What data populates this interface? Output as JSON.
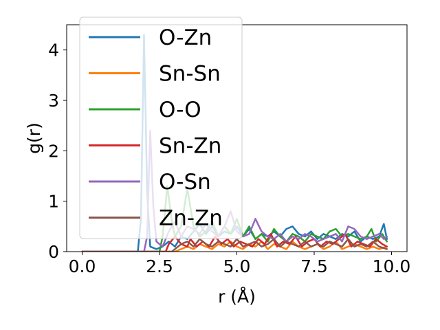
{
  "chart_data": {
    "type": "line",
    "title": "",
    "xlabel": "r (Å)",
    "ylabel": "g(r)",
    "xlim": [
      -0.5,
      10.5
    ],
    "ylim": [
      0,
      4.5
    ],
    "xticks": [
      0.0,
      2.5,
      5.0,
      7.5,
      10.0
    ],
    "xtick_labels": [
      "0.0",
      "2.5",
      "5.0",
      "7.5",
      "10.0"
    ],
    "yticks": [
      0,
      1,
      2,
      3,
      4
    ],
    "ytick_labels": [
      "0",
      "1",
      "2",
      "3",
      "4"
    ],
    "grid": false,
    "legend_position": "upper-left",
    "series": [
      {
        "name": "O-Zn",
        "color": "#1f77b4",
        "x": [
          0,
          1.8,
          1.9,
          2.0,
          2.1,
          2.2,
          2.4,
          2.6,
          2.8,
          3.0,
          3.2,
          3.4,
          3.6,
          3.8,
          4.0,
          4.2,
          4.4,
          4.6,
          4.8,
          5.0,
          5.2,
          5.4,
          5.6,
          5.8,
          6.0,
          6.2,
          6.4,
          6.6,
          6.8,
          7.0,
          7.2,
          7.4,
          7.6,
          7.8,
          8.0,
          8.2,
          8.4,
          8.6,
          8.8,
          9.0,
          9.2,
          9.4,
          9.6,
          9.75,
          9.85
        ],
        "values": [
          0,
          0,
          0.65,
          4.3,
          1.2,
          0.1,
          0.05,
          0.1,
          0.2,
          0.1,
          0.3,
          0.25,
          0.4,
          0.55,
          0.35,
          0.5,
          0.3,
          0.4,
          0.35,
          0.5,
          0.3,
          0.45,
          0.25,
          0.35,
          0.3,
          0.4,
          0.3,
          0.45,
          0.5,
          0.35,
          0.3,
          0.4,
          0.25,
          0.35,
          0.3,
          0.25,
          0.35,
          0.3,
          0.4,
          0.2,
          0.3,
          0.25,
          0.3,
          0.55,
          0.25
        ]
      },
      {
        "name": "Sn-Sn",
        "color": "#ff7f0e",
        "x": [
          0,
          3.0,
          3.2,
          3.4,
          3.6,
          3.8,
          4.0,
          4.2,
          4.4,
          4.6,
          4.8,
          5.0,
          5.2,
          5.4,
          5.6,
          5.8,
          6.0,
          6.2,
          6.4,
          6.6,
          6.8,
          7.0,
          7.2,
          7.4,
          7.6,
          7.8,
          8.0,
          8.2,
          8.4,
          8.6,
          8.8,
          9.0,
          9.2,
          9.4,
          9.6,
          9.85
        ],
        "values": [
          0,
          0,
          0.05,
          0.1,
          0.05,
          0.15,
          0.1,
          0.05,
          0.15,
          0.1,
          0.2,
          0.1,
          0.05,
          0.15,
          0.1,
          0.2,
          0.05,
          0.15,
          0.1,
          0.05,
          0.2,
          0.1,
          0.05,
          0.1,
          0.15,
          0.05,
          0.1,
          0.2,
          0.05,
          0.1,
          0.15,
          0.1,
          0.05,
          0.1,
          0.05,
          0.1
        ]
      },
      {
        "name": "O-O",
        "color": "#2ca02c",
        "x": [
          0,
          2.5,
          2.6,
          2.75,
          2.9,
          3.0,
          3.2,
          3.4,
          3.6,
          3.8,
          4.0,
          4.2,
          4.4,
          4.6,
          4.8,
          5.0,
          5.2,
          5.4,
          5.6,
          5.8,
          6.0,
          6.2,
          6.4,
          6.6,
          6.8,
          7.0,
          7.2,
          7.4,
          7.6,
          7.8,
          8.0,
          8.2,
          8.4,
          8.6,
          8.8,
          9.0,
          9.2,
          9.35,
          9.5,
          9.7,
          9.85
        ],
        "values": [
          0,
          0,
          0.3,
          1.3,
          0.6,
          0.3,
          0.5,
          1.25,
          0.5,
          0.3,
          0.4,
          0.6,
          0.3,
          0.5,
          0.35,
          0.65,
          0.3,
          0.5,
          0.25,
          0.35,
          0.2,
          0.45,
          0.3,
          0.2,
          0.35,
          0.3,
          0.2,
          0.35,
          0.3,
          0.25,
          0.4,
          0.45,
          0.3,
          0.35,
          0.3,
          0.25,
          0.3,
          0.45,
          0.2,
          0.35,
          0.2
        ]
      },
      {
        "name": "Sn-Zn",
        "color": "#d62728",
        "x": [
          0,
          2.7,
          2.8,
          3.0,
          3.2,
          3.4,
          3.5,
          3.7,
          3.9,
          4.1,
          4.3,
          4.5,
          4.7,
          4.9,
          5.1,
          5.3,
          5.5,
          5.7,
          5.9,
          6.1,
          6.3,
          6.5,
          6.7,
          6.9,
          7.1,
          7.3,
          7.5,
          7.7,
          7.9,
          8.1,
          8.3,
          8.5,
          8.7,
          8.9,
          9.1,
          9.3,
          9.5,
          9.7,
          9.85
        ],
        "values": [
          0,
          0,
          0.15,
          0.3,
          0.15,
          0.1,
          0.25,
          0.1,
          0.2,
          0.1,
          0.3,
          0.15,
          0.25,
          0.1,
          0.2,
          0.15,
          0.1,
          0.25,
          0.15,
          0.35,
          0.1,
          0.2,
          0.15,
          0.3,
          0.1,
          0.2,
          0.25,
          0.1,
          0.2,
          0.15,
          0.25,
          0.35,
          0.1,
          0.2,
          0.15,
          0.1,
          0.25,
          0.15,
          0.1
        ]
      },
      {
        "name": "O-Sn",
        "color": "#9467bd",
        "x": [
          0,
          2.0,
          2.1,
          2.2,
          2.3,
          2.4,
          2.6,
          2.8,
          3.0,
          3.2,
          3.4,
          3.6,
          3.8,
          4.0,
          4.2,
          4.4,
          4.6,
          4.8,
          5.0,
          5.2,
          5.4,
          5.6,
          5.8,
          6.0,
          6.2,
          6.4,
          6.6,
          6.8,
          7.0,
          7.2,
          7.4,
          7.6,
          7.8,
          8.0,
          8.2,
          8.4,
          8.6,
          8.8,
          9.0,
          9.2,
          9.4,
          9.6,
          9.75,
          9.85
        ],
        "values": [
          0,
          0,
          0.3,
          2.4,
          0.9,
          0.2,
          0.1,
          0.4,
          0.6,
          0.3,
          0.5,
          0.45,
          0.35,
          0.55,
          0.4,
          0.3,
          0.5,
          0.8,
          0.4,
          0.3,
          0.35,
          0.65,
          0.4,
          0.3,
          0.25,
          0.35,
          0.2,
          0.3,
          0.25,
          0.35,
          0.3,
          0.2,
          0.25,
          0.3,
          0.35,
          0.2,
          0.5,
          0.45,
          0.3,
          0.25,
          0.3,
          0.35,
          0.25,
          0.3
        ]
      },
      {
        "name": "Zn-Zn",
        "color": "#8c564b",
        "x": [
          0,
          2.9,
          3.0,
          3.2,
          3.4,
          3.6,
          3.8,
          4.0,
          4.2,
          4.4,
          4.6,
          4.8,
          5.0,
          5.2,
          5.4,
          5.6,
          5.8,
          6.0,
          6.2,
          6.4,
          6.6,
          6.8,
          7.0,
          7.2,
          7.4,
          7.6,
          7.8,
          8.0,
          8.2,
          8.4,
          8.6,
          8.8,
          9.0,
          9.2,
          9.4,
          9.6,
          9.85
        ],
        "values": [
          0,
          0,
          0.05,
          0.15,
          0.2,
          0.1,
          0.25,
          0.15,
          0.1,
          0.2,
          0.15,
          0.1,
          0.25,
          0.1,
          0.15,
          0.2,
          0.1,
          0.15,
          0.25,
          0.1,
          0.2,
          0.15,
          0.1,
          0.2,
          0.1,
          0.15,
          0.1,
          0.2,
          0.15,
          0.1,
          0.25,
          0.1,
          0.15,
          0.1,
          0.2,
          0.1,
          0.05
        ]
      }
    ]
  }
}
